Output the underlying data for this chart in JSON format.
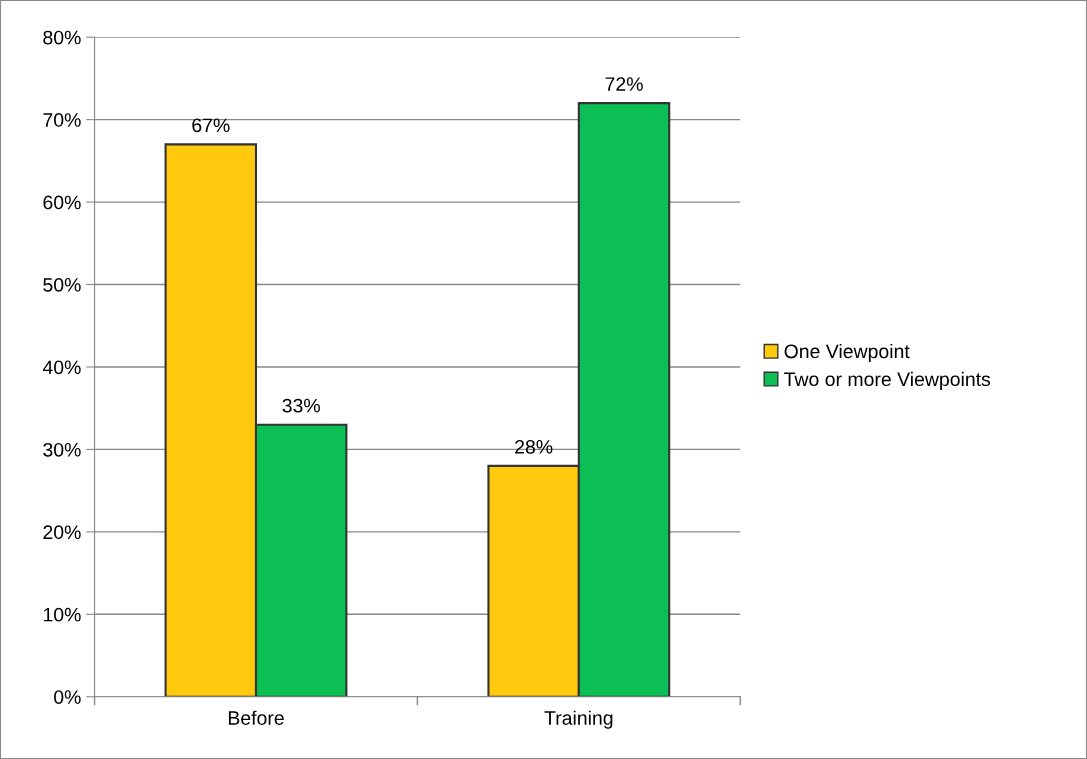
{
  "chart_data": {
    "type": "bar",
    "categories": [
      "Before",
      "Training"
    ],
    "series": [
      {
        "name": "One Viewpoint",
        "color": "#ffc90e",
        "values": [
          67,
          28
        ],
        "value_labels": [
          "67%",
          "28%"
        ]
      },
      {
        "name": "Two or more Viewpoints",
        "color": "#0bbf55",
        "values": [
          33,
          72
        ],
        "value_labels": [
          "33%",
          "72%"
        ]
      }
    ],
    "ylim": [
      0,
      80
    ],
    "yticks": [
      {
        "value": 0,
        "label": "0%"
      },
      {
        "value": 10,
        "label": "10%"
      },
      {
        "value": 20,
        "label": "20%"
      },
      {
        "value": 30,
        "label": "30%"
      },
      {
        "value": 40,
        "label": "40%"
      },
      {
        "value": 50,
        "label": "50%"
      },
      {
        "value": 60,
        "label": "60%"
      },
      {
        "value": 70,
        "label": "70%"
      },
      {
        "value": 80,
        "label": "80%"
      }
    ],
    "grid": "y",
    "legend": "right"
  }
}
